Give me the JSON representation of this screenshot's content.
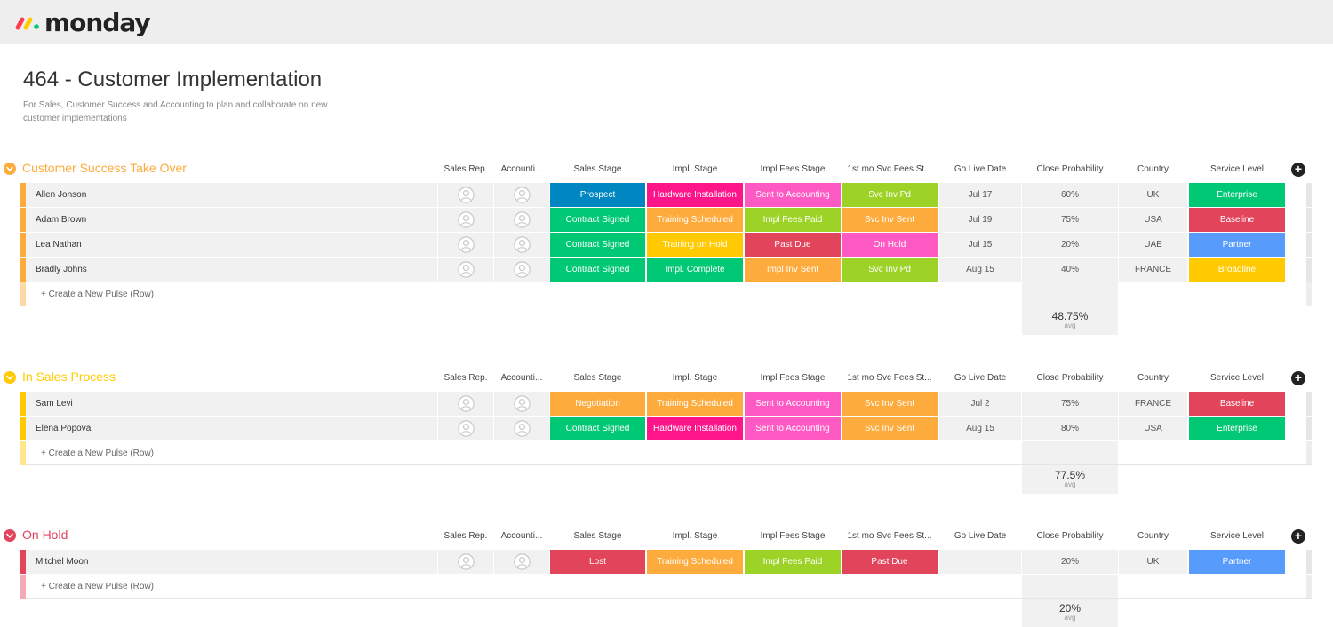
{
  "app": {
    "name": "monday"
  },
  "board": {
    "title": "464 - Customer Implementation",
    "description": "For Sales, Customer Success and Accounting to plan and collaborate on new customer implementations"
  },
  "columns": [
    "Sales Rep.",
    "Accounti...",
    "Sales Stage",
    "Impl. Stage",
    "Impl Fees Stage",
    "1st mo Svc Fees St...",
    "Go Live Date",
    "Close Probability",
    "Country",
    "Service Level"
  ],
  "create_row_label": "+ Create a New Pulse (Row)",
  "summary_label": "avg",
  "groups": [
    {
      "title": "Customer Success Take Over",
      "color": "#fdab3d",
      "avg": "48.75%",
      "rows": [
        {
          "name": "Allen Jonson",
          "sales_stage": {
            "label": "Prospect",
            "color": "#0086c0"
          },
          "impl_stage": {
            "label": "Hardware Installation",
            "color": "#ff158a"
          },
          "impl_fees": {
            "label": "Sent to Accounting",
            "color": "#ff5ac4"
          },
          "svc_fees": {
            "label": "Svc Inv Pd",
            "color": "#9cd326"
          },
          "go_live": "Jul 17",
          "close_prob": "60%",
          "country": "UK",
          "service_level": {
            "label": "Enterprise",
            "color": "#00c875"
          }
        },
        {
          "name": "Adam Brown",
          "sales_stage": {
            "label": "Contract Signed",
            "color": "#00c875"
          },
          "impl_stage": {
            "label": "Training Scheduled",
            "color": "#fdab3d"
          },
          "impl_fees": {
            "label": "Impl Fees Paid",
            "color": "#9cd326"
          },
          "svc_fees": {
            "label": "Svc Inv Sent",
            "color": "#fdab3d"
          },
          "go_live": "Jul 19",
          "close_prob": "75%",
          "country": "USA",
          "service_level": {
            "label": "Baseline",
            "color": "#e2445c"
          }
        },
        {
          "name": "Lea Nathan",
          "sales_stage": {
            "label": "Contract Signed",
            "color": "#00c875"
          },
          "impl_stage": {
            "label": "Training on Hold",
            "color": "#ffcb00"
          },
          "impl_fees": {
            "label": "Past Due",
            "color": "#e2445c"
          },
          "svc_fees": {
            "label": "On Hold",
            "color": "#ff5ac4"
          },
          "go_live": "Jul 15",
          "close_prob": "20%",
          "country": "UAE",
          "service_level": {
            "label": "Partner",
            "color": "#579bfc"
          }
        },
        {
          "name": "Bradly Johns",
          "sales_stage": {
            "label": "Contract Signed",
            "color": "#00c875"
          },
          "impl_stage": {
            "label": "Impl. Complete",
            "color": "#00c875"
          },
          "impl_fees": {
            "label": "Impl Inv Sent",
            "color": "#fdab3d"
          },
          "svc_fees": {
            "label": "Svc Inv Pd",
            "color": "#9cd326"
          },
          "go_live": "Aug 15",
          "close_prob": "40%",
          "country": "FRANCE",
          "service_level": {
            "label": "Broadline",
            "color": "#ffcb00"
          }
        }
      ]
    },
    {
      "title": "In Sales Process",
      "color": "#ffcb00",
      "avg": "77.5%",
      "rows": [
        {
          "name": "Sam Levi",
          "sales_stage": {
            "label": "Negotiation",
            "color": "#fdab3d"
          },
          "impl_stage": {
            "label": "Training Scheduled",
            "color": "#fdab3d"
          },
          "impl_fees": {
            "label": "Sent to Accounting",
            "color": "#ff5ac4"
          },
          "svc_fees": {
            "label": "Svc Inv Sent",
            "color": "#fdab3d"
          },
          "go_live": "Jul 2",
          "close_prob": "75%",
          "country": "FRANCE",
          "service_level": {
            "label": "Baseline",
            "color": "#e2445c"
          }
        },
        {
          "name": "Elena Popova",
          "sales_stage": {
            "label": "Contract Signed",
            "color": "#00c875"
          },
          "impl_stage": {
            "label": "Hardware Installation",
            "color": "#ff158a"
          },
          "impl_fees": {
            "label": "Sent to Accounting",
            "color": "#ff5ac4"
          },
          "svc_fees": {
            "label": "Svc Inv Sent",
            "color": "#fdab3d"
          },
          "go_live": "Aug 15",
          "close_prob": "80%",
          "country": "USA",
          "service_level": {
            "label": "Enterprise",
            "color": "#00c875"
          }
        }
      ]
    },
    {
      "title": "On Hold",
      "color": "#e2445c",
      "avg": "20%",
      "rows": [
        {
          "name": "Mitchel Moon",
          "sales_stage": {
            "label": "Lost",
            "color": "#e2445c"
          },
          "impl_stage": {
            "label": "Training Scheduled",
            "color": "#fdab3d"
          },
          "impl_fees": {
            "label": "Impl Fees Paid",
            "color": "#9cd326"
          },
          "svc_fees": {
            "label": "Past Due",
            "color": "#e2445c"
          },
          "go_live": "",
          "close_prob": "20%",
          "country": "UK",
          "service_level": {
            "label": "Partner",
            "color": "#579bfc"
          }
        }
      ]
    }
  ]
}
